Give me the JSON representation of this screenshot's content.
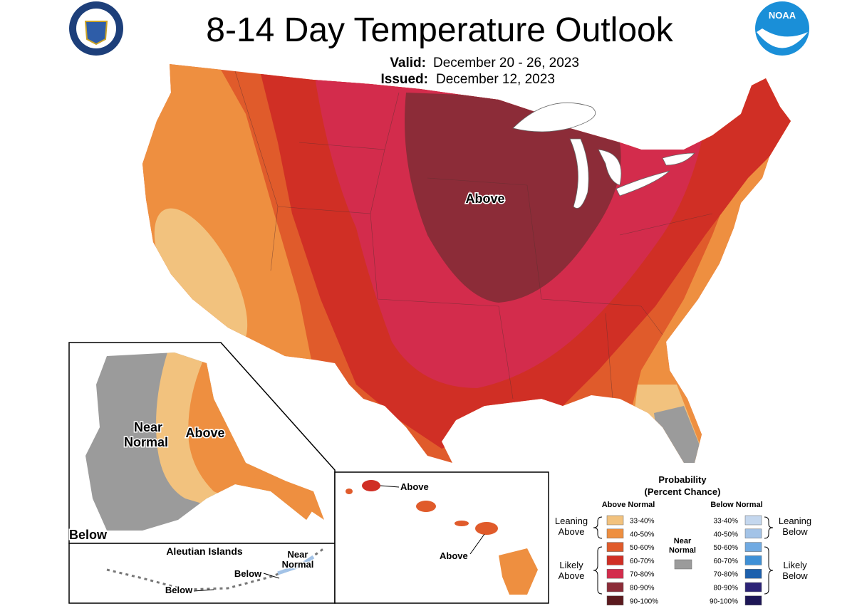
{
  "header": {
    "title": "8-14 Day Temperature Outlook",
    "valid_label": "Valid:",
    "valid": "December 20 - 26, 2023",
    "issued_label": "Issued:",
    "issued": "December 12, 2023",
    "logo": "NOAA"
  },
  "labels": {
    "conus_above": "Above",
    "alaska_near": [
      "Near",
      "Normal"
    ],
    "alaska_above": "Above",
    "alaska_below": "Below",
    "aleutian_title": "Aleutian Islands",
    "aleutian_near": [
      "Near",
      "Normal"
    ],
    "aleutian_below_1": "Below",
    "aleutian_below_2": "Below",
    "hawaii_above_1": "Above",
    "hawaii_above_2": "Above"
  },
  "legend": {
    "title": [
      "Probability",
      "(Percent Chance)"
    ],
    "above_heading": "Above Normal",
    "below_heading": "Below Normal",
    "above": [
      {
        "label": "33-40%",
        "color": "#f2c27e"
      },
      {
        "label": "40-50%",
        "color": "#ee8f40"
      },
      {
        "label": "50-60%",
        "color": "#e05b2b"
      },
      {
        "label": "60-70%",
        "color": "#d02f25"
      },
      {
        "label": "70-80%",
        "color": "#d32c4c"
      },
      {
        "label": "80-90%",
        "color": "#8c2c38"
      },
      {
        "label": "90-100%",
        "color": "#5b1a1e"
      }
    ],
    "below": [
      {
        "label": "33-40%",
        "color": "#c4d7ee"
      },
      {
        "label": "40-50%",
        "color": "#a3c3e7"
      },
      {
        "label": "50-60%",
        "color": "#70aae2"
      },
      {
        "label": "60-70%",
        "color": "#3f90d6"
      },
      {
        "label": "70-80%",
        "color": "#1d60ad"
      },
      {
        "label": "80-90%",
        "color": "#2c2377"
      },
      {
        "label": "90-100%",
        "color": "#1d1656"
      }
    ],
    "near_normal": {
      "label": [
        "Near",
        "Normal"
      ],
      "color": "#9b9b9b"
    },
    "leaning_above": [
      "Leaning",
      "Above"
    ],
    "likely_above": [
      "Likely",
      "Above"
    ],
    "leaning_below": [
      "Leaning",
      "Below"
    ],
    "likely_below": [
      "Likely",
      "Below"
    ]
  }
}
